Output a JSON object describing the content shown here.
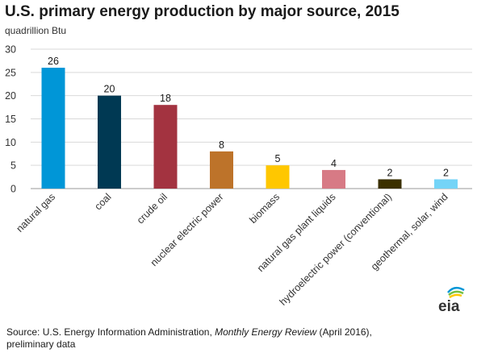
{
  "chart_data": {
    "type": "bar",
    "title": "U.S. primary energy production by major source, 2015",
    "units": "quadrillion Btu",
    "categories": [
      "natural gas",
      "coal",
      "crude oil",
      "nuclear electric power",
      "biomass",
      "natural gas plant liquids",
      "hydroelectric power (conventional)",
      "geothermal, solar, wind"
    ],
    "values": [
      26,
      20,
      18,
      8,
      5,
      4,
      2,
      2
    ],
    "data_labels": [
      "26",
      "20",
      "18",
      "8",
      "5",
      "4",
      "2",
      "2"
    ],
    "colors": [
      "#0096d7",
      "#003953",
      "#a33340",
      "#bd732a",
      "#ffc700",
      "#d77a85",
      "#3b3000",
      "#74d4f7"
    ],
    "ylim": [
      0,
      30
    ],
    "yticks": [
      0,
      5,
      10,
      15,
      20,
      25,
      30
    ],
    "grid": true,
    "legend": "none"
  },
  "source": {
    "prefix": "Source: U.S. Energy Information Administration, ",
    "publication": "Monthly Energy Review",
    "suffix": " (April 2016),",
    "line2": "preliminary data"
  },
  "logo": {
    "text": "eia",
    "icon": "eia-logo-icon"
  }
}
